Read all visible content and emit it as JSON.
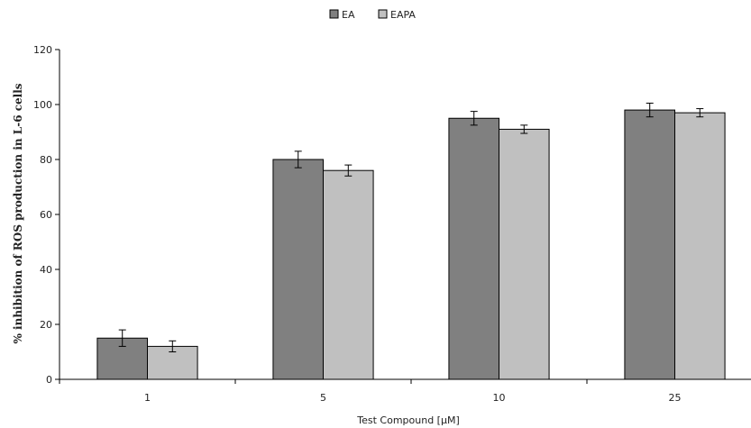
{
  "chart_data": {
    "type": "bar",
    "categories": [
      "1",
      "5",
      "10",
      "25"
    ],
    "series": [
      {
        "name": "EA",
        "values": [
          15,
          80,
          95,
          98
        ],
        "errors": [
          3,
          3,
          2.5,
          2.5
        ],
        "color": "#808080"
      },
      {
        "name": "EAPA",
        "values": [
          12,
          76,
          91,
          97
        ],
        "errors": [
          2,
          2,
          1.5,
          1.5
        ],
        "color": "#c0c0c0"
      }
    ],
    "title": "",
    "xlabel": "Test Compound [μM]",
    "ylabel": "% inhibition of ROS production in L-6 cells",
    "ylim": [
      0,
      120
    ],
    "yticks": [
      0,
      20,
      40,
      60,
      80,
      100,
      120
    ],
    "grid": false,
    "legend_position": "top-center"
  }
}
